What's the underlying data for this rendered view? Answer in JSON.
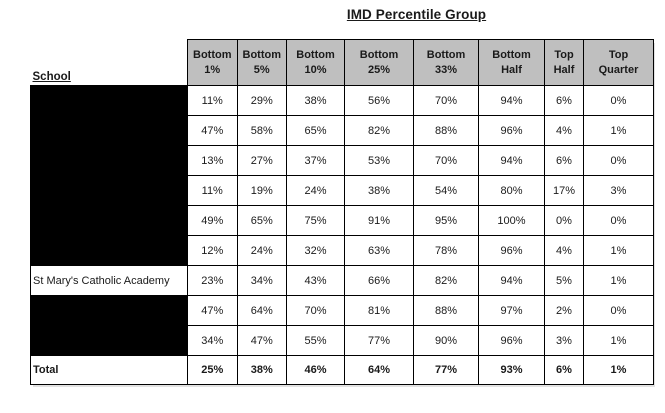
{
  "title": "IMD Percentile Group",
  "school_header": "School",
  "columns": [
    "Bottom 1%",
    "Bottom 5%",
    "Bottom 10%",
    "Bottom 25%",
    "Bottom 33%",
    "Bottom Half",
    "Top Half",
    "Top Quarter"
  ],
  "rows": [
    {
      "school": "",
      "redacted": true,
      "values": [
        "11%",
        "29%",
        "38%",
        "56%",
        "70%",
        "94%",
        "6%",
        "0%"
      ]
    },
    {
      "school": "",
      "redacted": true,
      "values": [
        "47%",
        "58%",
        "65%",
        "82%",
        "88%",
        "96%",
        "4%",
        "1%"
      ]
    },
    {
      "school": "",
      "redacted": true,
      "values": [
        "13%",
        "27%",
        "37%",
        "53%",
        "70%",
        "94%",
        "6%",
        "0%"
      ]
    },
    {
      "school": "",
      "redacted": true,
      "values": [
        "11%",
        "19%",
        "24%",
        "38%",
        "54%",
        "80%",
        "17%",
        "3%"
      ]
    },
    {
      "school": "",
      "redacted": true,
      "values": [
        "49%",
        "65%",
        "75%",
        "91%",
        "95%",
        "100%",
        "0%",
        "0%"
      ]
    },
    {
      "school": "",
      "redacted": true,
      "values": [
        "12%",
        "24%",
        "32%",
        "63%",
        "78%",
        "96%",
        "4%",
        "1%"
      ]
    },
    {
      "school": "St Mary's Catholic Academy",
      "redacted": false,
      "values": [
        "23%",
        "34%",
        "43%",
        "66%",
        "82%",
        "94%",
        "5%",
        "1%"
      ]
    },
    {
      "school": "",
      "redacted": true,
      "values": [
        "47%",
        "64%",
        "70%",
        "81%",
        "88%",
        "97%",
        "2%",
        "0%"
      ]
    },
    {
      "school": "",
      "redacted": true,
      "values": [
        "34%",
        "47%",
        "55%",
        "77%",
        "90%",
        "96%",
        "3%",
        "1%"
      ]
    }
  ],
  "total": {
    "label": "Total",
    "values": [
      "25%",
      "38%",
      "46%",
      "64%",
      "77%",
      "93%",
      "6%",
      "1%"
    ]
  },
  "colors": {
    "header_bg": "#BFBFBF",
    "border": "#000000",
    "redaction": "#000000",
    "background": "#FFFFFF"
  }
}
